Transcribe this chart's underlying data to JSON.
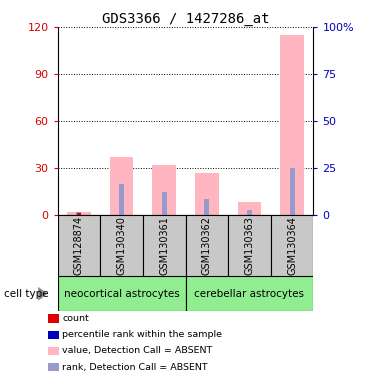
{
  "title": "GDS3366 / 1427286_at",
  "samples": [
    "GSM128874",
    "GSM130340",
    "GSM130361",
    "GSM130362",
    "GSM130363",
    "GSM130364"
  ],
  "pink_bars": [
    2.0,
    37.0,
    32.0,
    27.0,
    8.0,
    115.0
  ],
  "blue_bars": [
    2.0,
    20.0,
    15.0,
    10.0,
    3.0,
    30.0
  ],
  "ylim_left": [
    0,
    120
  ],
  "ylim_right": [
    0,
    100
  ],
  "yticks_left": [
    0,
    30,
    60,
    90,
    120
  ],
  "yticks_right": [
    0,
    25,
    50,
    75,
    100
  ],
  "ytick_labels_left": [
    "0",
    "30",
    "60",
    "90",
    "120"
  ],
  "ytick_labels_right": [
    "0",
    "25",
    "50",
    "75",
    "100%"
  ],
  "group1_label": "neocortical astrocytes",
  "group2_label": "cerebellar astrocytes",
  "cell_type_label": "cell type",
  "group_bg": "#90EE90",
  "bar_bg": "#C8C8C8",
  "pink_color": "#FFB6C1",
  "blue_color": "#9999CC",
  "red_color": "#DD0000",
  "dark_blue_color": "#0000BB",
  "legend_items": [
    {
      "label": "count",
      "color": "#DD0000"
    },
    {
      "label": "percentile rank within the sample",
      "color": "#0000BB"
    },
    {
      "label": "value, Detection Call = ABSENT",
      "color": "#FFB6C1"
    },
    {
      "label": "rank, Detection Call = ABSENT",
      "color": "#9999CC"
    }
  ],
  "title_fontsize": 10,
  "tick_fontsize": 8,
  "bar_width": 0.55,
  "plot_bg": "#ffffff",
  "right_axis_color": "#0000BB",
  "left_axis_color": "#DD0000",
  "n_group1": 3,
  "n_group2": 3
}
